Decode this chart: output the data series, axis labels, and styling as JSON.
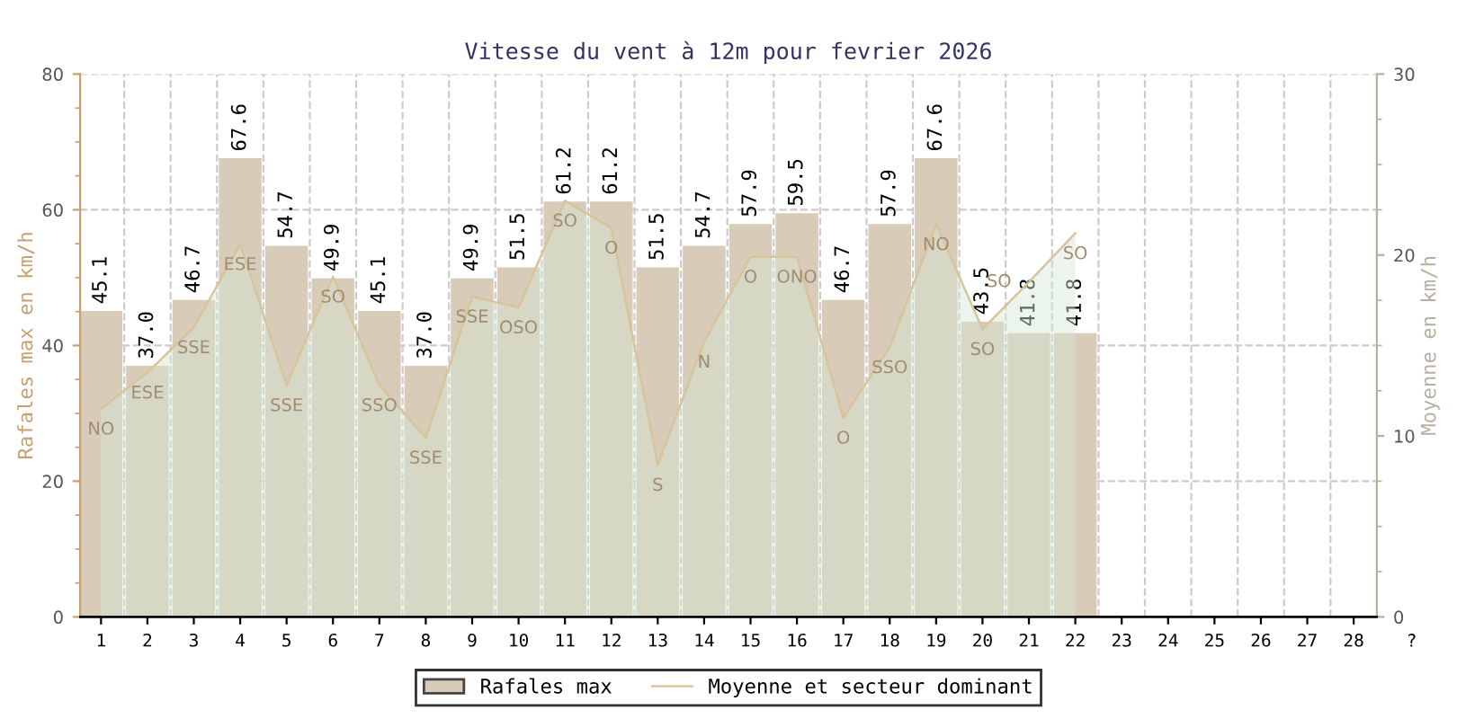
{
  "chart_data": {
    "type": "bar",
    "title": "Vitesse du vent à 12m pour fevrier 2026",
    "ylabel": "Rafales max en km/h",
    "y2label": "Moyenne en km/h",
    "categories": [
      "1",
      "2",
      "3",
      "4",
      "5",
      "6",
      "7",
      "8",
      "9",
      "10",
      "11",
      "12",
      "13",
      "14",
      "15",
      "16",
      "17",
      "18",
      "19",
      "20",
      "21",
      "22",
      "23",
      "24",
      "25",
      "26",
      "27",
      "28"
    ],
    "series": [
      {
        "name": "Rafales max",
        "color": "#d8cbb8",
        "values": [
          45.1,
          37.0,
          46.7,
          67.6,
          54.7,
          49.9,
          45.1,
          37.0,
          49.9,
          51.5,
          61.2,
          61.2,
          51.5,
          54.7,
          57.9,
          59.5,
          46.7,
          57.9,
          67.6,
          43.5,
          41.8,
          41.8,
          null,
          null,
          null,
          null,
          null,
          null
        ],
        "value_labels": [
          "45.1",
          "37.0",
          "46.7",
          "67.6",
          "54.7",
          "49.9",
          "45.1",
          "37.0",
          "49.9",
          "51.5",
          "61.2",
          "61.2",
          "51.5",
          "54.7",
          "57.9",
          "59.5",
          "46.7",
          "57.9",
          "67.6",
          "43.5",
          "41.8",
          "41.8",
          null,
          null,
          null,
          null,
          null,
          null
        ]
      },
      {
        "name": "Moyenne et secteur dominant",
        "type": "area",
        "axis": "y2",
        "color": "#d8c49a",
        "values": [
          11.5,
          13.5,
          16.0,
          20.6,
          12.8,
          18.8,
          12.8,
          9.9,
          17.7,
          17.1,
          23.0,
          21.5,
          8.4,
          15.2,
          19.9,
          19.9,
          11.0,
          14.9,
          21.7,
          15.9,
          18.5,
          21.2,
          null,
          null,
          null,
          null,
          null,
          null
        ]
      }
    ],
    "annotations": [
      "NO",
      "ESE",
      "SSE",
      "ESE",
      "SSE",
      "SO",
      "SSO",
      "SSE",
      "SSE",
      "OSO",
      "SO",
      "O",
      "S",
      "N",
      "O",
      "ONO",
      "O",
      "SSO",
      "NO",
      "SO",
      "SO",
      "SO",
      "?"
    ],
    "ylim": [
      0,
      80
    ],
    "yticks": [
      0,
      20,
      40,
      60,
      80
    ],
    "y2lim": [
      0,
      30
    ],
    "y2ticks": [
      0,
      10,
      20,
      30
    ],
    "grid": true,
    "legend": "bottom"
  }
}
